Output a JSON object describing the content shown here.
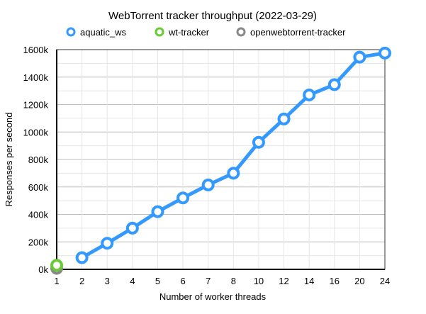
{
  "chart_data": {
    "type": "line",
    "title": "WebTorrent tracker throughput (2022-03-29)",
    "xlabel": "Number of worker threads",
    "ylabel": "Responses per second",
    "categories": [
      "1",
      "2",
      "3",
      "4",
      "5",
      "6",
      "7",
      "8",
      "10",
      "12",
      "14",
      "16",
      "20",
      "24"
    ],
    "ylim": [
      0,
      1600000
    ],
    "yticks": [
      "0k",
      "200k",
      "400k",
      "600k",
      "800k",
      "1000k",
      "1200k",
      "1400k",
      "1600k"
    ],
    "grid": true,
    "legend_position": "top",
    "series": [
      {
        "name": "aquatic_ws",
        "color": "#3399ff",
        "values": [
          null,
          85000,
          190000,
          300000,
          420000,
          520000,
          615000,
          700000,
          925000,
          1095000,
          1270000,
          1345000,
          1545000,
          1575000
        ]
      },
      {
        "name": "wt-tracker",
        "color": "#66cc33",
        "values": [
          30000,
          null,
          null,
          null,
          null,
          null,
          null,
          null,
          null,
          null,
          null,
          null,
          null,
          null
        ]
      },
      {
        "name": "openwebtorrent-tracker",
        "color": "#888888",
        "values": [
          8000,
          null,
          null,
          null,
          null,
          null,
          null,
          null,
          null,
          null,
          null,
          null,
          null,
          null
        ]
      }
    ]
  }
}
